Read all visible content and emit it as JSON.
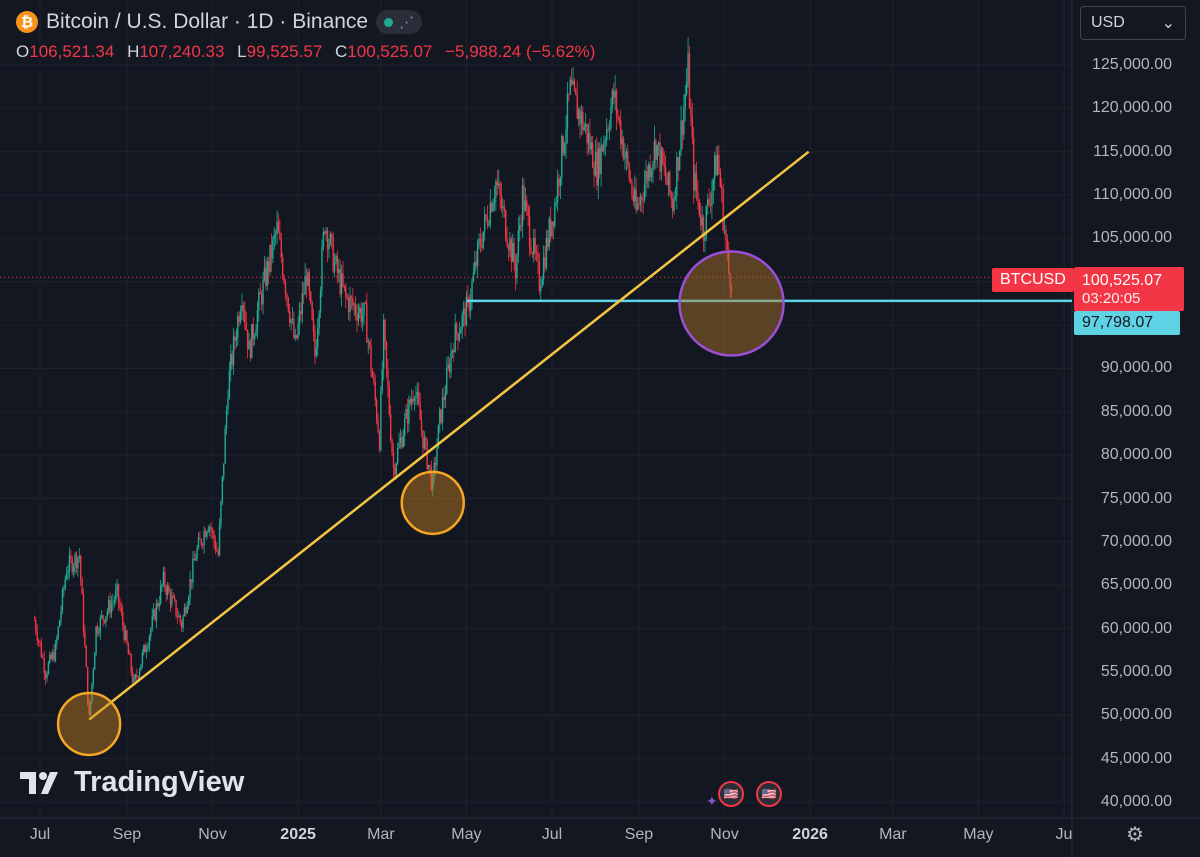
{
  "header": {
    "title": "Bitcoin / U.S. Dollar · 1D · Binance",
    "coin_glyph": "₿",
    "currency": "USD"
  },
  "ohlc": {
    "o_label": "O",
    "o_value": "106,521.34",
    "h_label": "H",
    "h_value": "107,240.33",
    "l_label": "L",
    "l_value": "99,525.57",
    "c_label": "C",
    "c_value": "100,525.07",
    "change": "−5,988.24 (−5.62%)"
  },
  "tags": {
    "symbol": "BTCUSD",
    "last_price": "100,525.07",
    "countdown": "03:20:05",
    "level": "97,798.07"
  },
  "brand": "TradingView",
  "colors": {
    "up": "#22ab94",
    "down": "#f23645",
    "trendline": "#f5c542",
    "level": "#5fd3e6",
    "orange_circle": "#f5a623",
    "purple_circle": "#9c4fd6"
  },
  "chart_data": {
    "type": "candlestick",
    "y_ticks": [
      "125,000.00",
      "120,000.00",
      "115,000.00",
      "110,000.00",
      "105,000.00",
      "100,000.00",
      "95,000.00",
      "90,000.00",
      "85,000.00",
      "80,000.00",
      "75,000.00",
      "70,000.00",
      "65,000.00",
      "60,000.00",
      "55,000.00",
      "50,000.00",
      "45,000.00",
      "40,000.00"
    ],
    "y_tick_values": [
      125000,
      120000,
      115000,
      110000,
      105000,
      100000,
      95000,
      90000,
      85000,
      80000,
      75000,
      70000,
      65000,
      60000,
      55000,
      50000,
      45000,
      40000
    ],
    "ylim": [
      40000,
      127000
    ],
    "x_ticks": [
      {
        "label": "Jul",
        "date": "2024-07-01",
        "bold": false
      },
      {
        "label": "Sep",
        "date": "2024-09-01",
        "bold": false
      },
      {
        "label": "Nov",
        "date": "2024-11-01",
        "bold": false
      },
      {
        "label": "2025",
        "date": "2025-01-01",
        "bold": true
      },
      {
        "label": "Mar",
        "date": "2025-03-01",
        "bold": false
      },
      {
        "label": "May",
        "date": "2025-05-01",
        "bold": false
      },
      {
        "label": "Jul",
        "date": "2025-07-01",
        "bold": false
      },
      {
        "label": "Sep",
        "date": "2025-09-01",
        "bold": false
      },
      {
        "label": "Nov",
        "date": "2025-11-01",
        "bold": false
      },
      {
        "label": "2026",
        "date": "2026-01-01",
        "bold": true
      },
      {
        "label": "Mar",
        "date": "2026-03-01",
        "bold": false
      },
      {
        "label": "May",
        "date": "2026-05-01",
        "bold": false
      },
      {
        "label": "Ju",
        "date": "2026-07-01",
        "bold": false
      }
    ],
    "price_path": [
      [
        "2024-06-27",
        61000
      ],
      [
        "2024-07-05",
        55000
      ],
      [
        "2024-07-12",
        57500
      ],
      [
        "2024-07-20",
        67000
      ],
      [
        "2024-07-29",
        68500
      ],
      [
        "2024-08-05",
        49500
      ],
      [
        "2024-08-10",
        60000
      ],
      [
        "2024-08-25",
        64000
      ],
      [
        "2024-09-06",
        53500
      ],
      [
        "2024-09-18",
        60000
      ],
      [
        "2024-09-27",
        65500
      ],
      [
        "2024-10-10",
        60500
      ],
      [
        "2024-10-20",
        68500
      ],
      [
        "2024-10-29",
        72500
      ],
      [
        "2024-11-05",
        68500
      ],
      [
        "2024-11-12",
        88000
      ],
      [
        "2024-11-22",
        99000
      ],
      [
        "2024-11-27",
        92000
      ],
      [
        "2024-12-05",
        98000
      ],
      [
        "2024-12-17",
        106000
      ],
      [
        "2024-12-30",
        92500
      ],
      [
        "2025-01-07",
        101000
      ],
      [
        "2025-01-13",
        91500
      ],
      [
        "2025-01-20",
        107000
      ],
      [
        "2025-01-27",
        102000
      ],
      [
        "2025-02-04",
        98000
      ],
      [
        "2025-02-18",
        96000
      ],
      [
        "2025-02-28",
        82000
      ],
      [
        "2025-03-03",
        94000
      ],
      [
        "2025-03-10",
        78500
      ],
      [
        "2025-03-25",
        88000
      ],
      [
        "2025-03-31",
        82000
      ],
      [
        "2025-04-07",
        76500
      ],
      [
        "2025-04-12",
        84000
      ],
      [
        "2025-04-22",
        93500
      ],
      [
        "2025-05-02",
        97000
      ],
      [
        "2025-05-10",
        104000
      ],
      [
        "2025-05-22",
        111500
      ],
      [
        "2025-06-05",
        101500
      ],
      [
        "2025-06-10",
        110000
      ],
      [
        "2025-06-22",
        100000
      ],
      [
        "2025-07-03",
        109000
      ],
      [
        "2025-07-14",
        122000
      ],
      [
        "2025-07-25",
        117500
      ],
      [
        "2025-08-02",
        113000
      ],
      [
        "2025-08-14",
        121500
      ],
      [
        "2025-08-30",
        108000
      ],
      [
        "2025-09-13",
        116000
      ],
      [
        "2025-09-25",
        109000
      ],
      [
        "2025-10-06",
        124500
      ],
      [
        "2025-10-10",
        112000
      ],
      [
        "2025-10-17",
        106000
      ],
      [
        "2025-10-27",
        114500
      ],
      [
        "2025-11-04",
        101000
      ],
      [
        "2025-11-06",
        100525
      ]
    ],
    "lows_highlighted": [
      {
        "date": "2024-08-05",
        "price": 49000,
        "color": "orange"
      },
      {
        "date": "2025-04-07",
        "price": 74500,
        "color": "orange"
      },
      {
        "date": "2025-11-06",
        "price": 97500,
        "color": "purple"
      }
    ],
    "trendline": [
      [
        "2024-08-05",
        49500
      ],
      [
        "2025-12-31",
        115000
      ]
    ],
    "horizontal_level": {
      "price": 97798.07,
      "from": "2025-05-01"
    },
    "last_price": 100525.07
  }
}
